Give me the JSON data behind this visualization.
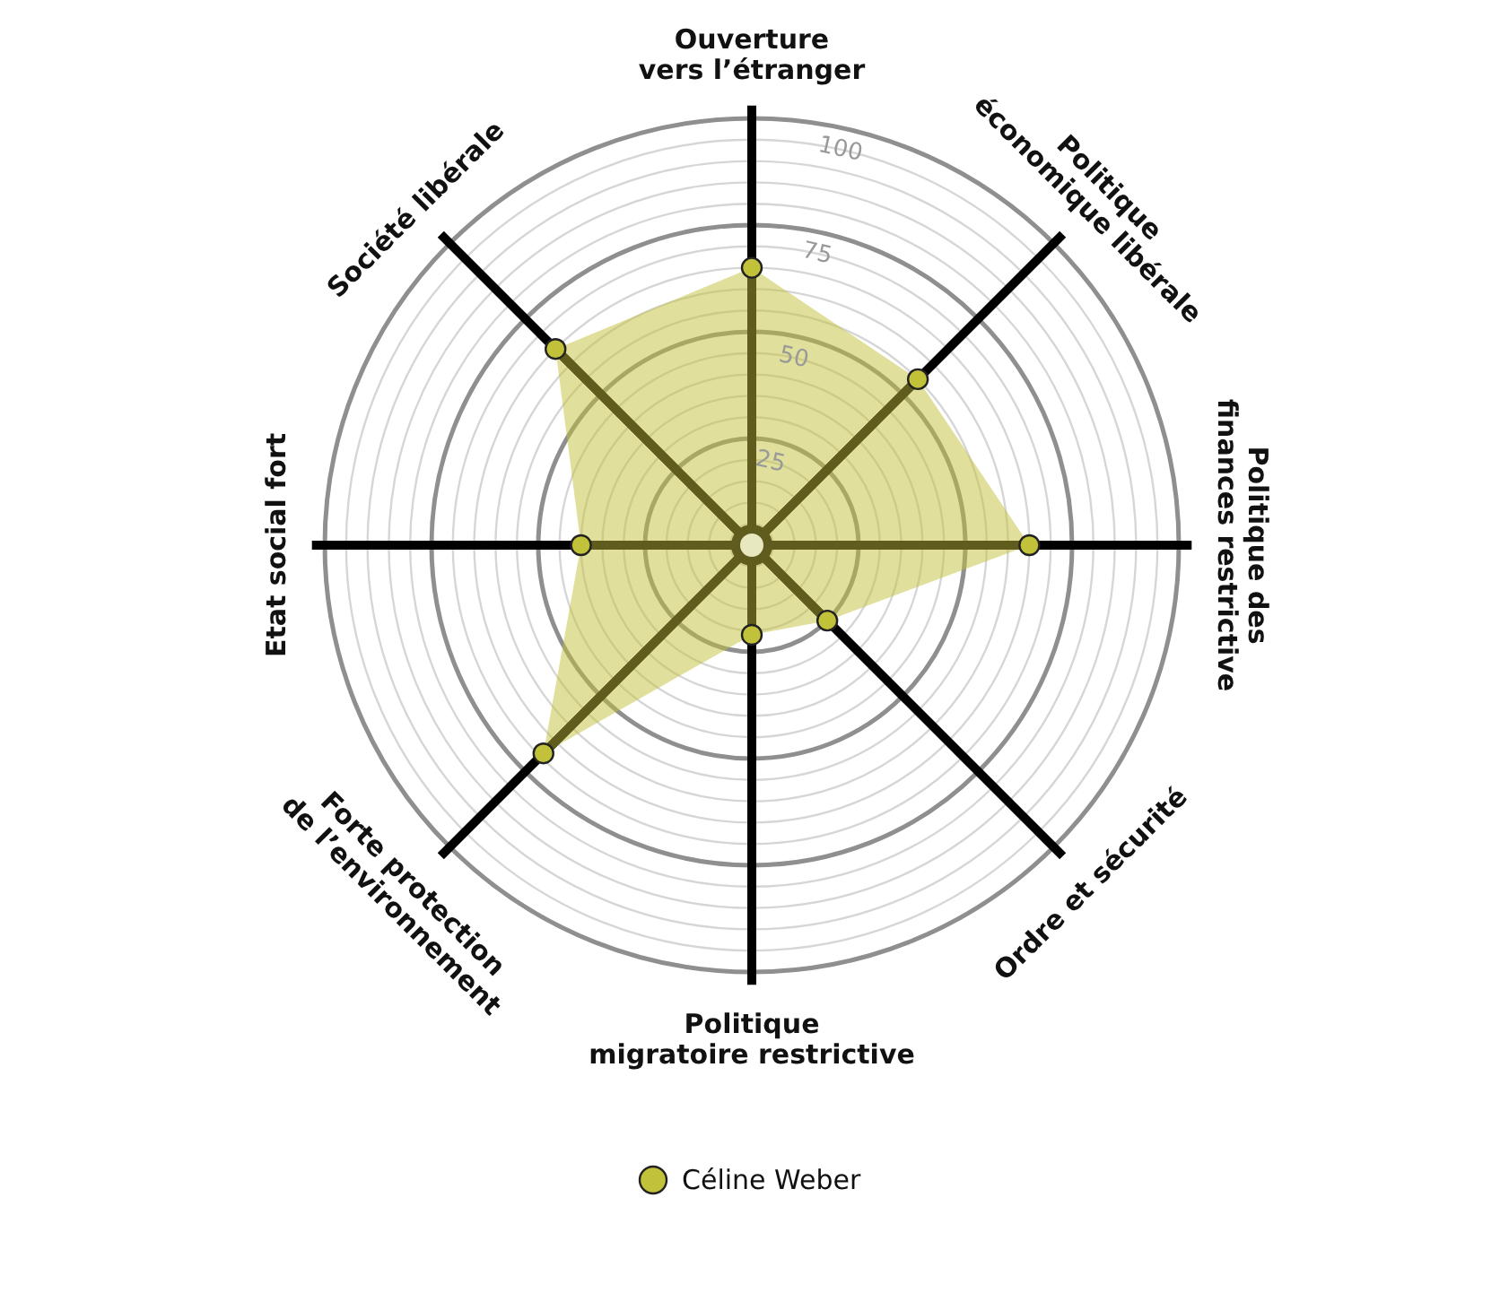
{
  "chart_data": {
    "type": "radar",
    "categories": [
      "Ouverture\nvers l’étranger",
      "Politique\néconomique libérale",
      "Politique des\nfinances restrictive",
      "Ordre et sécurité",
      "Politique\nmigratoire restrictive",
      "Forte protection\nde l’environnement",
      "Etat social fort",
      "Société libérale"
    ],
    "series": [
      {
        "name": "Céline Weber",
        "color": "#c2c23a",
        "values": [
          65,
          55,
          65,
          25,
          21,
          69,
          40,
          65
        ]
      }
    ],
    "ylim": [
      0,
      100
    ],
    "yticks": [
      25,
      50,
      75,
      100
    ],
    "grid": true,
    "marker": "circle",
    "legend": "bottom"
  }
}
